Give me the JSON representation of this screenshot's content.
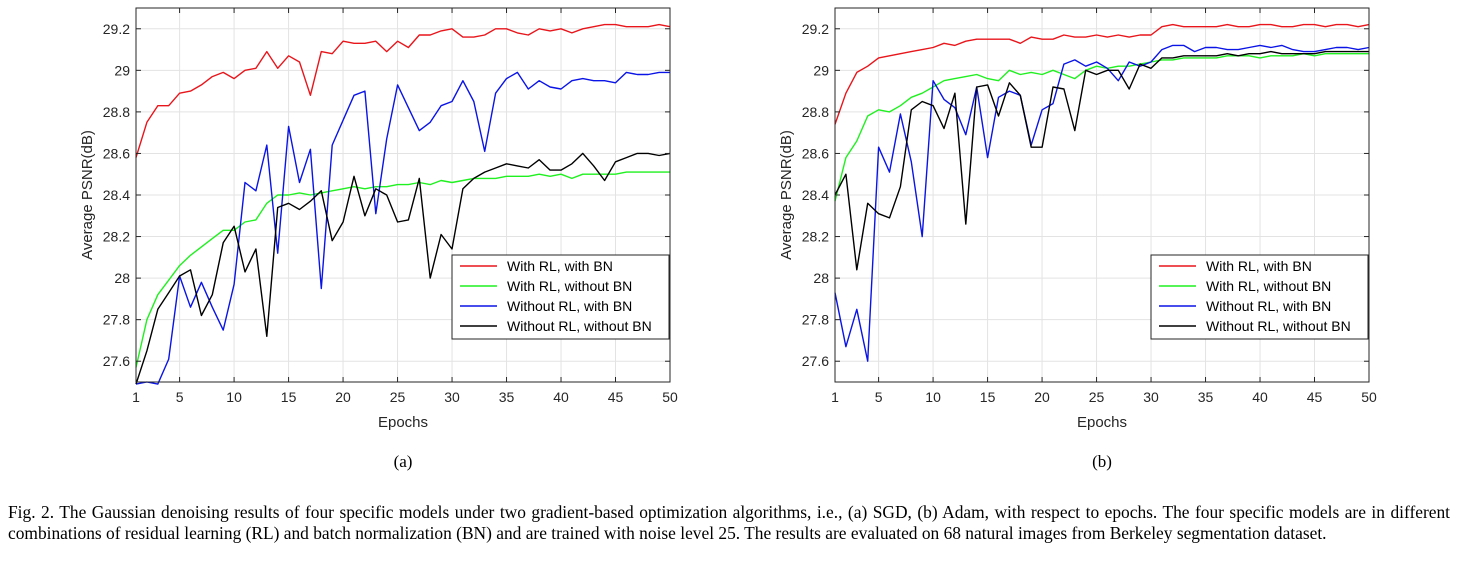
{
  "caption": "Fig. 2.   The Gaussian denoising results of four specific models under two gradient-based optimization algorithms, i.e., (a) SGD, (b) Adam, with respect to epochs. The four specific models are in different combinations of residual learning (RL) and batch normalization (BN) and are trained with noise level 25. The results are evaluated on 68 natural images from Berkeley segmentation dataset.",
  "colors": {
    "With RL, with BN": "#e8151b",
    "With RL, without BN": "#1ff01f",
    "Without RL, with BN": "#0a14e6",
    "Without RL, without BN": "#000000"
  },
  "chart_data": [
    {
      "type": "line",
      "subtitle": "(a)",
      "xlabel": "Epochs",
      "ylabel": "Average PSNR(dB)",
      "xlim": [
        1,
        50
      ],
      "ylim": [
        27.5,
        29.3
      ],
      "xticks": [
        1,
        5,
        10,
        15,
        20,
        25,
        30,
        35,
        40,
        45,
        50
      ],
      "yticks": [
        27.6,
        27.8,
        28,
        28.2,
        28.4,
        28.6,
        28.8,
        29,
        29.2
      ],
      "grid": true,
      "legend_position": "bottom-right",
      "series": [
        {
          "name": "With RL, with BN",
          "x": [
            1,
            2,
            3,
            4,
            5,
            6,
            7,
            8,
            9,
            10,
            11,
            12,
            13,
            14,
            15,
            16,
            17,
            18,
            19,
            20,
            21,
            22,
            23,
            24,
            25,
            26,
            27,
            28,
            29,
            30,
            31,
            32,
            33,
            34,
            35,
            36,
            37,
            38,
            39,
            40,
            41,
            42,
            43,
            44,
            45,
            46,
            47,
            48,
            49,
            50
          ],
          "y": [
            28.58,
            28.75,
            28.83,
            28.83,
            28.89,
            28.9,
            28.93,
            28.97,
            28.99,
            28.96,
            29.0,
            29.01,
            29.09,
            29.01,
            29.07,
            29.04,
            28.88,
            29.09,
            29.08,
            29.14,
            29.13,
            29.13,
            29.14,
            29.09,
            29.14,
            29.11,
            29.17,
            29.17,
            29.19,
            29.2,
            29.16,
            29.16,
            29.17,
            29.2,
            29.2,
            29.18,
            29.17,
            29.2,
            29.19,
            29.2,
            29.18,
            29.2,
            29.21,
            29.22,
            29.22,
            29.21,
            29.21,
            29.21,
            29.22,
            29.21
          ]
        },
        {
          "name": "With RL, without BN",
          "x": [
            1,
            2,
            3,
            4,
            5,
            6,
            7,
            8,
            9,
            10,
            11,
            12,
            13,
            14,
            15,
            16,
            17,
            18,
            19,
            20,
            21,
            22,
            23,
            24,
            25,
            26,
            27,
            28,
            29,
            30,
            31,
            32,
            33,
            34,
            35,
            36,
            37,
            38,
            39,
            40,
            41,
            42,
            43,
            44,
            45,
            46,
            47,
            48,
            49,
            50
          ],
          "y": [
            27.57,
            27.8,
            27.92,
            27.99,
            28.06,
            28.11,
            28.15,
            28.19,
            28.23,
            28.23,
            28.27,
            28.28,
            28.36,
            28.4,
            28.4,
            28.41,
            28.4,
            28.41,
            28.42,
            28.43,
            28.44,
            28.43,
            28.44,
            28.44,
            28.45,
            28.45,
            28.46,
            28.45,
            28.47,
            28.46,
            28.47,
            28.48,
            28.48,
            28.48,
            28.49,
            28.49,
            28.49,
            28.5,
            28.49,
            28.5,
            28.48,
            28.5,
            28.5,
            28.5,
            28.5,
            28.51,
            28.51,
            28.51,
            28.51,
            28.51
          ]
        },
        {
          "name": "Without RL, with BN",
          "x": [
            1,
            2,
            3,
            4,
            5,
            6,
            7,
            8,
            9,
            10,
            11,
            12,
            13,
            14,
            15,
            16,
            17,
            18,
            19,
            20,
            21,
            22,
            23,
            24,
            25,
            26,
            27,
            28,
            29,
            30,
            31,
            32,
            33,
            34,
            35,
            36,
            37,
            38,
            39,
            40,
            41,
            42,
            43,
            44,
            45,
            46,
            47,
            48,
            49,
            50
          ],
          "y": [
            27.49,
            27.5,
            27.49,
            27.61,
            28.01,
            27.86,
            27.98,
            27.86,
            27.75,
            27.97,
            28.46,
            28.42,
            28.64,
            28.12,
            28.73,
            28.46,
            28.62,
            27.95,
            28.64,
            28.76,
            28.88,
            28.9,
            28.31,
            28.67,
            28.93,
            28.82,
            28.71,
            28.75,
            28.83,
            28.85,
            28.95,
            28.85,
            28.61,
            28.89,
            28.96,
            28.99,
            28.91,
            28.95,
            28.92,
            28.91,
            28.95,
            28.96,
            28.95,
            28.95,
            28.94,
            28.99,
            28.98,
            28.98,
            28.99,
            28.99
          ]
        },
        {
          "name": "Without RL, without BN",
          "x": [
            1,
            2,
            3,
            4,
            5,
            6,
            7,
            8,
            9,
            10,
            11,
            12,
            13,
            14,
            15,
            16,
            17,
            18,
            19,
            20,
            21,
            22,
            23,
            24,
            25,
            26,
            27,
            28,
            29,
            30,
            31,
            32,
            33,
            34,
            35,
            36,
            37,
            38,
            39,
            40,
            41,
            42,
            43,
            44,
            45,
            46,
            47,
            48,
            49,
            50
          ],
          "y": [
            27.49,
            27.65,
            27.85,
            27.93,
            28.01,
            28.04,
            27.82,
            27.92,
            28.17,
            28.25,
            28.03,
            28.14,
            27.72,
            28.34,
            28.36,
            28.33,
            28.37,
            28.42,
            28.18,
            28.27,
            28.49,
            28.3,
            28.43,
            28.4,
            28.27,
            28.28,
            28.48,
            28.0,
            28.21,
            28.14,
            28.43,
            28.48,
            28.51,
            28.53,
            28.55,
            28.54,
            28.53,
            28.57,
            28.52,
            28.52,
            28.55,
            28.6,
            28.54,
            28.47,
            28.56,
            28.58,
            28.6,
            28.6,
            28.59,
            28.6
          ]
        }
      ]
    },
    {
      "type": "line",
      "subtitle": "(b)",
      "xlabel": "Epochs",
      "ylabel": "Average PSNR(dB)",
      "xlim": [
        1,
        50
      ],
      "ylim": [
        27.5,
        29.3
      ],
      "xticks": [
        1,
        5,
        10,
        15,
        20,
        25,
        30,
        35,
        40,
        45,
        50
      ],
      "yticks": [
        27.6,
        27.8,
        28,
        28.2,
        28.4,
        28.6,
        28.8,
        29,
        29.2
      ],
      "grid": true,
      "legend_position": "bottom-right",
      "series": [
        {
          "name": "With RL, with BN",
          "x": [
            1,
            2,
            3,
            4,
            5,
            6,
            7,
            8,
            9,
            10,
            11,
            12,
            13,
            14,
            15,
            16,
            17,
            18,
            19,
            20,
            21,
            22,
            23,
            24,
            25,
            26,
            27,
            28,
            29,
            30,
            31,
            32,
            33,
            34,
            35,
            36,
            37,
            38,
            39,
            40,
            41,
            42,
            43,
            44,
            45,
            46,
            47,
            48,
            49,
            50
          ],
          "y": [
            28.74,
            28.89,
            28.99,
            29.02,
            29.06,
            29.07,
            29.08,
            29.09,
            29.1,
            29.11,
            29.13,
            29.12,
            29.14,
            29.15,
            29.15,
            29.15,
            29.15,
            29.13,
            29.16,
            29.15,
            29.15,
            29.17,
            29.16,
            29.16,
            29.17,
            29.16,
            29.17,
            29.16,
            29.17,
            29.17,
            29.21,
            29.22,
            29.21,
            29.21,
            29.21,
            29.21,
            29.22,
            29.21,
            29.21,
            29.22,
            29.22,
            29.21,
            29.21,
            29.22,
            29.22,
            29.21,
            29.22,
            29.22,
            29.21,
            29.22
          ]
        },
        {
          "name": "With RL, without BN",
          "x": [
            1,
            2,
            3,
            4,
            5,
            6,
            7,
            8,
            9,
            10,
            11,
            12,
            13,
            14,
            15,
            16,
            17,
            18,
            19,
            20,
            21,
            22,
            23,
            24,
            25,
            26,
            27,
            28,
            29,
            30,
            31,
            32,
            33,
            34,
            35,
            36,
            37,
            38,
            39,
            40,
            41,
            42,
            43,
            44,
            45,
            46,
            47,
            48,
            49,
            50
          ],
          "y": [
            28.37,
            28.58,
            28.66,
            28.78,
            28.81,
            28.8,
            28.83,
            28.87,
            28.89,
            28.92,
            28.95,
            28.96,
            28.97,
            28.98,
            28.96,
            28.95,
            29.0,
            28.98,
            28.99,
            28.98,
            29.0,
            28.98,
            28.96,
            29.0,
            29.02,
            29.01,
            29.02,
            29.02,
            29.03,
            29.04,
            29.05,
            29.05,
            29.06,
            29.06,
            29.06,
            29.06,
            29.07,
            29.07,
            29.07,
            29.06,
            29.07,
            29.07,
            29.07,
            29.08,
            29.07,
            29.08,
            29.08,
            29.08,
            29.08,
            29.08
          ]
        },
        {
          "name": "Without RL, with BN",
          "x": [
            1,
            2,
            3,
            4,
            5,
            6,
            7,
            8,
            9,
            10,
            11,
            12,
            13,
            14,
            15,
            16,
            17,
            18,
            19,
            20,
            21,
            22,
            23,
            24,
            25,
            26,
            27,
            28,
            29,
            30,
            31,
            32,
            33,
            34,
            35,
            36,
            37,
            38,
            39,
            40,
            41,
            42,
            43,
            44,
            45,
            46,
            47,
            48,
            49,
            50
          ],
          "y": [
            27.93,
            27.67,
            27.85,
            27.6,
            28.63,
            28.51,
            28.79,
            28.56,
            28.2,
            28.95,
            28.86,
            28.82,
            28.69,
            28.92,
            28.58,
            28.87,
            28.9,
            28.88,
            28.64,
            28.81,
            28.84,
            29.03,
            29.05,
            29.02,
            29.04,
            29.01,
            28.95,
            29.04,
            29.02,
            29.04,
            29.1,
            29.12,
            29.12,
            29.09,
            29.11,
            29.11,
            29.1,
            29.1,
            29.11,
            29.12,
            29.11,
            29.12,
            29.1,
            29.09,
            29.09,
            29.1,
            29.11,
            29.11,
            29.1,
            29.11
          ]
        },
        {
          "name": "Without RL, without BN",
          "x": [
            1,
            2,
            3,
            4,
            5,
            6,
            7,
            8,
            9,
            10,
            11,
            12,
            13,
            14,
            15,
            16,
            17,
            18,
            19,
            20,
            21,
            22,
            23,
            24,
            25,
            26,
            27,
            28,
            29,
            30,
            31,
            32,
            33,
            34,
            35,
            36,
            37,
            38,
            39,
            40,
            41,
            42,
            43,
            44,
            45,
            46,
            47,
            48,
            49,
            50
          ],
          "y": [
            28.4,
            28.5,
            28.04,
            28.36,
            28.31,
            28.29,
            28.44,
            28.81,
            28.85,
            28.83,
            28.72,
            28.89,
            28.26,
            28.92,
            28.93,
            28.78,
            28.94,
            28.88,
            28.63,
            28.63,
            28.92,
            28.91,
            28.71,
            29.0,
            28.98,
            29.0,
            29.0,
            28.91,
            29.03,
            29.01,
            29.06,
            29.06,
            29.07,
            29.07,
            29.07,
            29.07,
            29.08,
            29.07,
            29.08,
            29.08,
            29.09,
            29.08,
            29.08,
            29.08,
            29.08,
            29.09,
            29.09,
            29.09,
            29.09,
            29.09
          ]
        }
      ]
    }
  ]
}
